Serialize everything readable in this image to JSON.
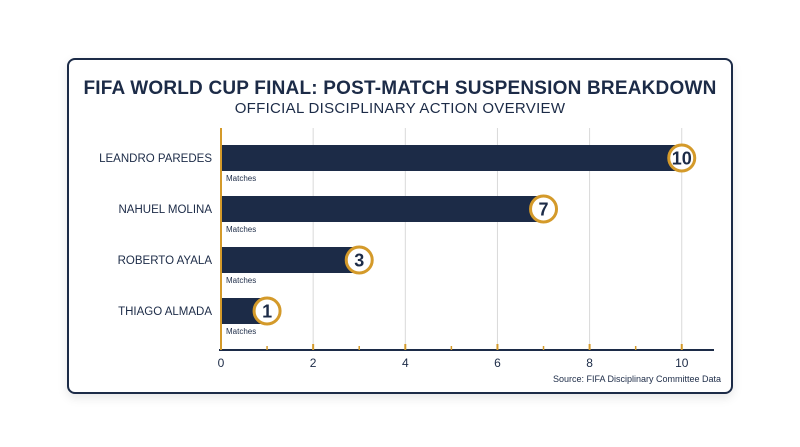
{
  "colors": {
    "bar": "#1c2b47",
    "accent": "#d49a2a",
    "grid": "#d9d9d9",
    "text": "#1c2b47"
  },
  "chart_data": {
    "type": "bar",
    "orientation": "horizontal",
    "title": "FIFA WORLD CUP FINAL: POST-MATCH SUSPENSION BREAKDOWN",
    "subtitle": "OFFICIAL DISCIPLINARY ACTION OVERVIEW",
    "categories": [
      "LEANDRO PAREDES",
      "NAHUEL MOLINA",
      "ROBERTO AYALA",
      "THIAGO ALMADA"
    ],
    "values": [
      10,
      7,
      3,
      1
    ],
    "value_unit_label": "Matches",
    "xlim": [
      0,
      10.7
    ],
    "xticks": [
      0,
      2,
      4,
      6,
      8,
      10
    ],
    "grid": true,
    "source": "Source: FIFA Disciplinary Committee Data"
  }
}
